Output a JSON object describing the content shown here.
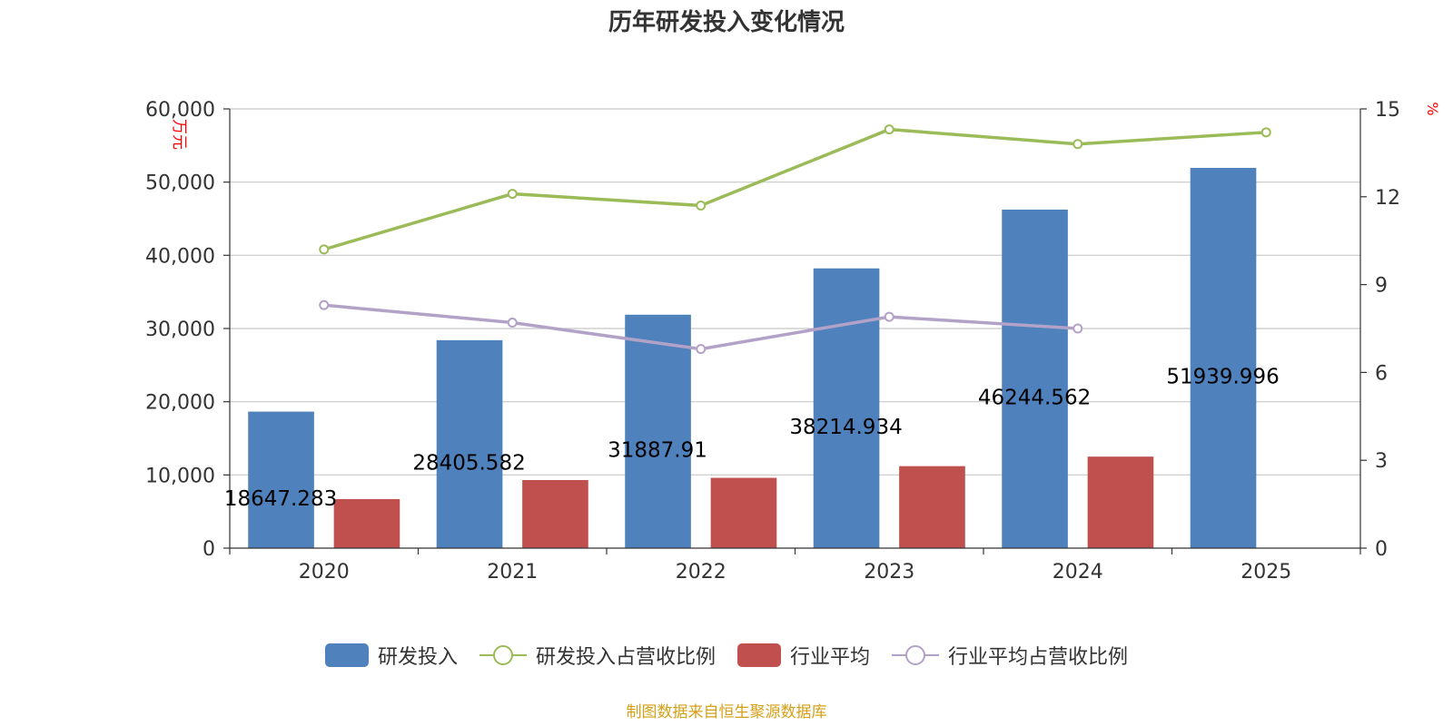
{
  "chart_data": {
    "type": "bar",
    "title": "历年研发投入变化情况",
    "categories": [
      "2020",
      "2021",
      "2022",
      "2023",
      "2024",
      "2025"
    ],
    "y_left": {
      "label": "万元",
      "min": 0,
      "max": 60000,
      "ticks": [
        "0",
        "10,000",
        "20,000",
        "30,000",
        "40,000",
        "50,000",
        "60,000"
      ]
    },
    "y_right": {
      "label": "%",
      "min": 0,
      "max": 15,
      "ticks": [
        "0",
        "3",
        "6",
        "9",
        "12",
        "15"
      ]
    },
    "grid": true,
    "legend_position": "bottom",
    "series": [
      {
        "name": "研发投入",
        "kind": "bar",
        "axis": "left",
        "color": "#4f81bd",
        "values": [
          18647.283,
          28405.582,
          31887.91,
          38214.934,
          46244.562,
          51939.996
        ],
        "labels": [
          "18647.283",
          "28405.582",
          "31887.91",
          "38214.934",
          "46244.562",
          "51939.996"
        ]
      },
      {
        "name": "研发投入占营收比例",
        "kind": "line",
        "axis": "right",
        "color": "#9bbb59",
        "values": [
          10.2,
          12.1,
          11.7,
          14.3,
          13.8,
          14.2
        ]
      },
      {
        "name": "行业平均",
        "kind": "bar",
        "axis": "left",
        "color": "#c0504d",
        "values": [
          6700,
          9300,
          9600,
          11200,
          12500,
          null
        ]
      },
      {
        "name": "行业平均占营收比例",
        "kind": "line",
        "axis": "right",
        "color": "#b3a2c7",
        "values": [
          8.3,
          7.7,
          6.8,
          7.9,
          7.5,
          null
        ]
      }
    ]
  },
  "footer": {
    "source": "制图数据来自恒生聚源数据库"
  }
}
